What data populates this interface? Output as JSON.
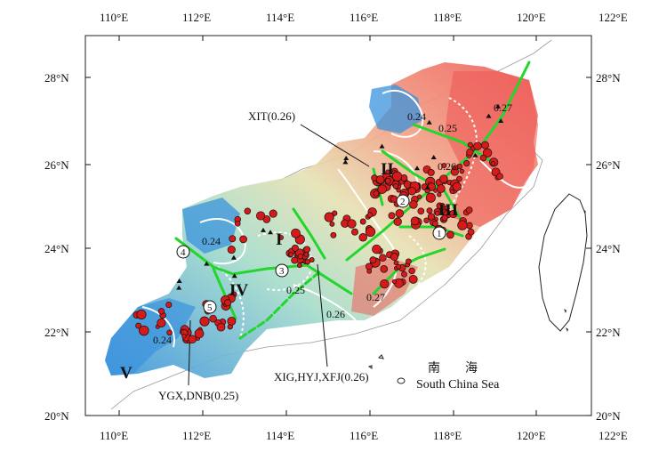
{
  "axes": {
    "lon_ticks": [
      "110°E",
      "112°E",
      "114°E",
      "116°E",
      "118°E",
      "120°E",
      "122°E"
    ],
    "lat_ticks": [
      "28°N",
      "26°N",
      "24°N",
      "22°N",
      "20°N"
    ]
  },
  "colors": {
    "low": "#3a93dd",
    "mid": "#9fd9c9",
    "mid2": "#e8e4b0",
    "high": "#ef5b55",
    "fault": "#22d62c",
    "quake": "#d61a1a",
    "contour": "#ffffff"
  },
  "annotations": {
    "xit": "XIT(0.26)",
    "xig": "XIG,HYJ,XFJ(0.26)",
    "ygx": "YGX,DNB(0.25)"
  },
  "regions": {
    "r1": "I",
    "r2": "II",
    "r3": "III",
    "r4": "IV",
    "r5": "V"
  },
  "contours": {
    "c1": "0.27",
    "c2": "0.24",
    "c3": "0.25",
    "c4": "0.26",
    "c5": "0.24",
    "c6": "0.25",
    "c7": "0.26",
    "c8": "0.27",
    "c9": "0.24"
  },
  "circles": [
    "1",
    "2",
    "3",
    "4",
    "5"
  ],
  "sea": {
    "cn": "南　　海",
    "en": "South China Sea"
  }
}
